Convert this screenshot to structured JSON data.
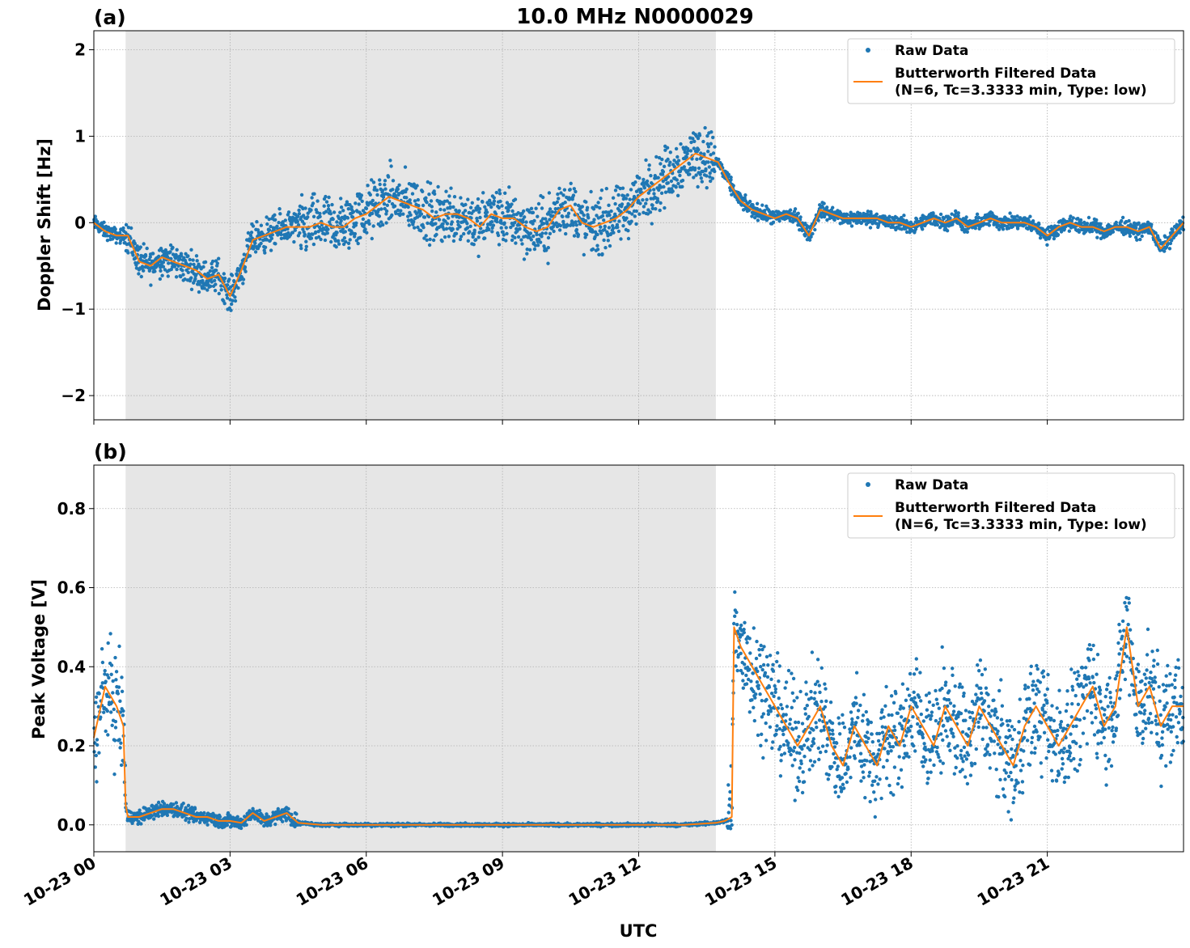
{
  "title": "10.0 MHz N0000029",
  "xlabel": "UTC",
  "colors": {
    "raw": "#1f77b4",
    "filtered": "#ff7f0e",
    "shade": "#e6e6e6",
    "grid": "#b0b0b0"
  },
  "legend": {
    "raw_label": "Raw Data",
    "filtered_label_line1": "Butterworth Filtered Data",
    "filtered_label_line2": "(N=6, Tc=3.3333 min, Type: low)"
  },
  "chart_data": [
    {
      "type": "scatter",
      "panel_label": "(a)",
      "ylabel": "Doppler Shift [Hz]",
      "xlim_hours": [
        0,
        24
      ],
      "ylim": [
        -2.28,
        2.22
      ],
      "yticks": [
        -2,
        -1,
        0,
        1,
        2
      ],
      "ytick_labels": [
        "−2",
        "−1",
        "0",
        "1",
        "2"
      ],
      "xticks_hours": [
        0,
        3,
        6,
        9,
        12,
        15,
        18,
        21
      ],
      "xtick_labels": [
        "10-23 00",
        "10-23 03",
        "10-23 06",
        "10-23 09",
        "10-23 12",
        "10-23 15",
        "10-23 18",
        "10-23 21"
      ],
      "grid": true,
      "legend_position": "top-right",
      "shaded_interval_hours": [
        0.7,
        13.7
      ],
      "series": [
        {
          "name": "Butterworth Filtered Data",
          "x": [
            0,
            0.25,
            0.5,
            0.75,
            1,
            1.25,
            1.5,
            1.75,
            2,
            2.25,
            2.5,
            2.75,
            3,
            3.25,
            3.5,
            3.75,
            4,
            4.25,
            4.5,
            4.75,
            5,
            5.25,
            5.5,
            5.75,
            6,
            6.25,
            6.5,
            6.75,
            7,
            7.25,
            7.5,
            7.75,
            8,
            8.25,
            8.5,
            8.75,
            9,
            9.25,
            9.5,
            9.75,
            10,
            10.25,
            10.5,
            10.75,
            11,
            11.25,
            11.5,
            11.75,
            12,
            12.25,
            12.5,
            12.75,
            13,
            13.25,
            13.5,
            13.75,
            14,
            14.25,
            14.5,
            14.75,
            15,
            15.25,
            15.5,
            15.75,
            16,
            16.25,
            16.5,
            16.75,
            17,
            17.25,
            17.5,
            17.75,
            18,
            18.25,
            18.5,
            18.75,
            19,
            19.25,
            19.5,
            19.75,
            20,
            20.25,
            20.5,
            20.75,
            21,
            21.25,
            21.5,
            21.75,
            22,
            22.25,
            22.5,
            22.75,
            23,
            23.25,
            23.5,
            23.75,
            24
          ],
          "y": [
            0,
            -0.1,
            -0.15,
            -0.15,
            -0.45,
            -0.5,
            -0.4,
            -0.45,
            -0.5,
            -0.55,
            -0.65,
            -0.6,
            -0.85,
            -0.55,
            -0.2,
            -0.15,
            -0.1,
            -0.05,
            -0.05,
            -0.05,
            0,
            -0.05,
            -0.05,
            0.05,
            0.1,
            0.2,
            0.3,
            0.25,
            0.2,
            0.15,
            0.05,
            0.1,
            0.1,
            0.05,
            -0.05,
            0.1,
            0.05,
            0.05,
            -0.05,
            -0.1,
            -0.05,
            0.15,
            0.2,
            0,
            -0.05,
            0,
            0.05,
            0.15,
            0.3,
            0.4,
            0.5,
            0.6,
            0.7,
            0.8,
            0.75,
            0.7,
            0.45,
            0.25,
            0.15,
            0.1,
            0.05,
            0.1,
            0.05,
            -0.15,
            0.15,
            0.1,
            0.05,
            0.05,
            0.05,
            0.05,
            0,
            0,
            -0.05,
            0,
            0.05,
            0,
            0.05,
            -0.05,
            0,
            0.05,
            0,
            0,
            0,
            -0.05,
            -0.15,
            -0.05,
            0,
            -0.05,
            -0.05,
            -0.1,
            -0.05,
            -0.05,
            -0.1,
            -0.05,
            -0.3,
            -0.15,
            0
          ]
        },
        {
          "name": "Raw Data",
          "scatter_about_filtered": true
        }
      ]
    },
    {
      "type": "scatter",
      "panel_label": "(b)",
      "ylabel": "Peak Voltage [V]",
      "xlim_hours": [
        0,
        24
      ],
      "ylim": [
        -0.068,
        0.91
      ],
      "yticks": [
        0.0,
        0.2,
        0.4,
        0.6,
        0.8
      ],
      "ytick_labels": [
        "0.0",
        "0.2",
        "0.4",
        "0.6",
        "0.8"
      ],
      "xticks_hours": [
        0,
        3,
        6,
        9,
        12,
        15,
        18,
        21
      ],
      "xtick_labels": [
        "10-23 00",
        "10-23 03",
        "10-23 06",
        "10-23 09",
        "10-23 12",
        "10-23 15",
        "10-23 18",
        "10-23 21"
      ],
      "grid": true,
      "legend_position": "top-right",
      "shaded_interval_hours": [
        0.7,
        13.7
      ],
      "series": [
        {
          "name": "Butterworth Filtered Data",
          "x": [
            0,
            0.25,
            0.5,
            0.65,
            0.7,
            0.75,
            1,
            1.25,
            1.5,
            1.75,
            2,
            2.25,
            2.5,
            2.75,
            3,
            3.25,
            3.5,
            3.75,
            4,
            4.25,
            4.5,
            5,
            6,
            7,
            8,
            9,
            10,
            11,
            12,
            13,
            13.7,
            13.9,
            14.05,
            14.1,
            14.25,
            14.5,
            14.75,
            15,
            15.25,
            15.5,
            15.75,
            16,
            16.25,
            16.5,
            16.75,
            17,
            17.25,
            17.5,
            17.75,
            18,
            18.25,
            18.5,
            18.75,
            19,
            19.25,
            19.5,
            19.75,
            20,
            20.25,
            20.5,
            20.75,
            21,
            21.25,
            21.5,
            21.75,
            22,
            22.25,
            22.5,
            22.75,
            23,
            23.25,
            23.5,
            23.75,
            24
          ],
          "y": [
            0.22,
            0.35,
            0.3,
            0.25,
            0.05,
            0.02,
            0.02,
            0.03,
            0.04,
            0.04,
            0.03,
            0.02,
            0.02,
            0.01,
            0.01,
            0.005,
            0.03,
            0.01,
            0.02,
            0.03,
            0.005,
            0,
            0,
            0,
            0,
            0,
            0,
            0,
            0,
            0,
            0.005,
            0.01,
            0.02,
            0.5,
            0.45,
            0.4,
            0.35,
            0.3,
            0.25,
            0.2,
            0.25,
            0.3,
            0.2,
            0.15,
            0.25,
            0.2,
            0.15,
            0.25,
            0.2,
            0.3,
            0.25,
            0.2,
            0.3,
            0.25,
            0.2,
            0.3,
            0.25,
            0.2,
            0.15,
            0.25,
            0.3,
            0.25,
            0.2,
            0.25,
            0.3,
            0.35,
            0.25,
            0.3,
            0.5,
            0.3,
            0.35,
            0.25,
            0.3,
            0.3
          ]
        },
        {
          "name": "Raw Data",
          "scatter_about_filtered": true
        }
      ]
    }
  ]
}
